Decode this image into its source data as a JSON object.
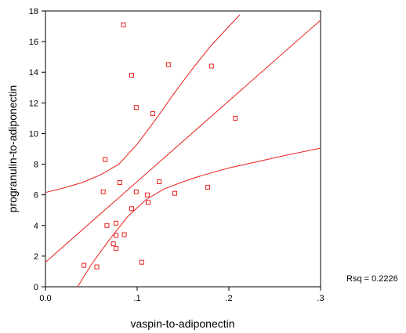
{
  "chart_data": {
    "type": "scatter",
    "xlabel": "vaspin-to-adiponectin",
    "ylabel": "progranulin-to-adiponectin",
    "xlim": [
      0.0,
      0.3
    ],
    "ylim": [
      0,
      18
    ],
    "x_ticks": [
      {
        "value": 0.0,
        "label": "0.0"
      },
      {
        "value": 0.1,
        "label": ".1"
      },
      {
        "value": 0.2,
        "label": ".2"
      },
      {
        "value": 0.3,
        "label": ".3"
      }
    ],
    "y_ticks": [
      {
        "value": 0,
        "label": "0"
      },
      {
        "value": 2,
        "label": "2"
      },
      {
        "value": 4,
        "label": "4"
      },
      {
        "value": 6,
        "label": "6"
      },
      {
        "value": 8,
        "label": "8"
      },
      {
        "value": 10,
        "label": "10"
      },
      {
        "value": 12,
        "label": "12"
      },
      {
        "value": 14,
        "label": "14"
      },
      {
        "value": 16,
        "label": "16"
      },
      {
        "value": 18,
        "label": "18"
      }
    ],
    "annotation": "Rsq = 0.2226",
    "grid": false,
    "marker": "open-square",
    "color": "#e8201e",
    "points": [
      {
        "x": 0.085,
        "y": 17.1
      },
      {
        "x": 0.094,
        "y": 13.8
      },
      {
        "x": 0.134,
        "y": 14.5
      },
      {
        "x": 0.181,
        "y": 14.4
      },
      {
        "x": 0.099,
        "y": 11.7
      },
      {
        "x": 0.117,
        "y": 11.3
      },
      {
        "x": 0.207,
        "y": 11.0
      },
      {
        "x": 0.065,
        "y": 8.3
      },
      {
        "x": 0.081,
        "y": 6.8
      },
      {
        "x": 0.124,
        "y": 6.85
      },
      {
        "x": 0.063,
        "y": 6.2
      },
      {
        "x": 0.099,
        "y": 6.2
      },
      {
        "x": 0.111,
        "y": 6.0
      },
      {
        "x": 0.141,
        "y": 6.1
      },
      {
        "x": 0.177,
        "y": 6.5
      },
      {
        "x": 0.112,
        "y": 5.5
      },
      {
        "x": 0.094,
        "y": 5.1
      },
      {
        "x": 0.077,
        "y": 4.15
      },
      {
        "x": 0.067,
        "y": 4.0
      },
      {
        "x": 0.077,
        "y": 3.35
      },
      {
        "x": 0.086,
        "y": 3.4
      },
      {
        "x": 0.074,
        "y": 2.8
      },
      {
        "x": 0.077,
        "y": 2.5
      },
      {
        "x": 0.105,
        "y": 1.6
      },
      {
        "x": 0.042,
        "y": 1.4
      },
      {
        "x": 0.056,
        "y": 1.3
      }
    ],
    "fit_line": [
      {
        "x": 0.0,
        "y": 1.6
      },
      {
        "x": 0.3,
        "y": 17.4
      }
    ],
    "confidence_upper": [
      {
        "x": 0.0,
        "y": 6.15
      },
      {
        "x": 0.02,
        "y": 6.45
      },
      {
        "x": 0.04,
        "y": 6.8
      },
      {
        "x": 0.06,
        "y": 7.3
      },
      {
        "x": 0.08,
        "y": 8.0
      },
      {
        "x": 0.1,
        "y": 9.3
      },
      {
        "x": 0.12,
        "y": 10.9
      },
      {
        "x": 0.14,
        "y": 12.6
      },
      {
        "x": 0.16,
        "y": 14.2
      },
      {
        "x": 0.18,
        "y": 15.7
      },
      {
        "x": 0.2,
        "y": 17.0
      },
      {
        "x": 0.212,
        "y": 17.75
      }
    ],
    "confidence_lower": [
      {
        "x": 0.035,
        "y": 0.0
      },
      {
        "x": 0.05,
        "y": 1.45
      },
      {
        "x": 0.07,
        "y": 3.1
      },
      {
        "x": 0.09,
        "y": 4.6
      },
      {
        "x": 0.11,
        "y": 5.7
      },
      {
        "x": 0.13,
        "y": 6.4
      },
      {
        "x": 0.15,
        "y": 6.85
      },
      {
        "x": 0.17,
        "y": 7.25
      },
      {
        "x": 0.2,
        "y": 7.75
      },
      {
        "x": 0.23,
        "y": 8.15
      },
      {
        "x": 0.26,
        "y": 8.55
      },
      {
        "x": 0.3,
        "y": 9.05
      }
    ]
  }
}
